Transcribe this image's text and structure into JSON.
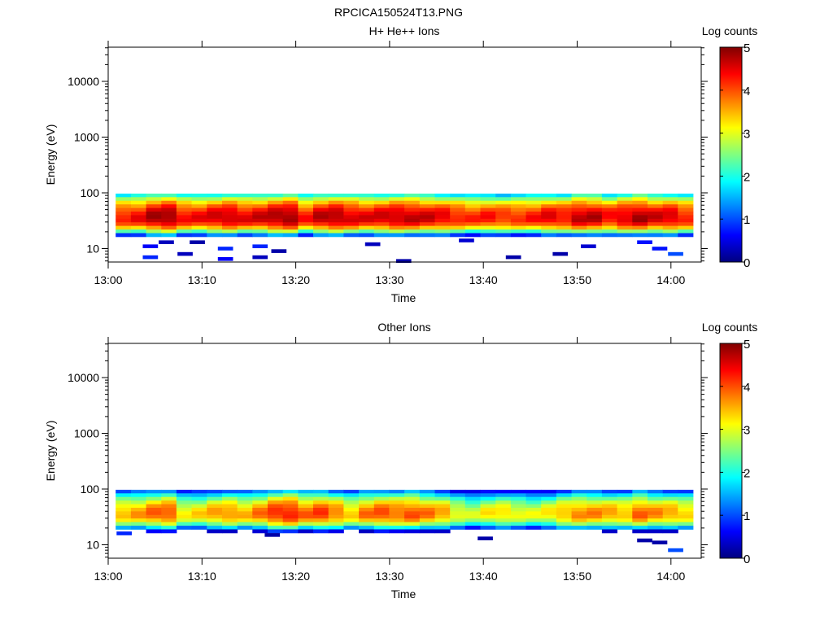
{
  "chart_data": {
    "type": "heatmap",
    "title": "RPCICA150524T13.PNG",
    "time_axis": {
      "label": "Time",
      "ticks": [
        "13:00",
        "13:10",
        "13:20",
        "13:30",
        "13:40",
        "13:50",
        "14:00"
      ],
      "range_minutes_after_1300": [
        0,
        63.2
      ]
    },
    "energy_axis": {
      "label": "Energy (eV)",
      "scale": "log",
      "ticks": [
        "10",
        "100",
        "1000",
        "10000"
      ],
      "range": [
        5.6,
        41000
      ]
    },
    "colorbar": {
      "label": "Log counts",
      "ticks": [
        "0",
        "1",
        "2",
        "3",
        "4",
        "5"
      ],
      "range": [
        0,
        5
      ],
      "colormap": [
        "#000080",
        "#0000ff",
        "#00ffff",
        "#ffff00",
        "#ff0000",
        "#800000"
      ]
    },
    "column_start_minute": 0.8,
    "column_minutes": 1.62,
    "energy_bin_top_eV": 97,
    "energy_bin_ratio": 1.16,
    "energy_bin_count": 13,
    "panels": [
      {
        "title": "H+ He++ Ions",
        "peak_energy_eV": 35,
        "column_peak_log_counts": [
          4.3,
          4.4,
          4.8,
          4.9,
          4.4,
          4.4,
          4.6,
          4.7,
          4.5,
          4.6,
          4.8,
          4.9,
          4.3,
          4.7,
          4.8,
          4.6,
          4.5,
          4.6,
          4.7,
          4.7,
          4.6,
          4.5,
          4.3,
          4.2,
          4.3,
          4.2,
          4.2,
          4.3,
          4.5,
          4.4,
          4.7,
          4.7,
          4.4,
          4.6,
          4.8,
          4.6,
          4.6,
          4.3
        ],
        "sparse_counts": [
          [
            4.5,
            11,
            0.6
          ],
          [
            4.5,
            7,
            0.8
          ],
          [
            6.2,
            13,
            0.3
          ],
          [
            8.2,
            8,
            0.3
          ],
          [
            9.5,
            13,
            0.2
          ],
          [
            12.5,
            10,
            0.8
          ],
          [
            12.5,
            6.5,
            0.6
          ],
          [
            16.2,
            11,
            0.8
          ],
          [
            16.2,
            7,
            0.3
          ],
          [
            18.2,
            9,
            0.2
          ],
          [
            28.2,
            12,
            0.3
          ],
          [
            31.5,
            6,
            0.2
          ],
          [
            38.2,
            14,
            0.4
          ],
          [
            43.2,
            7,
            0.2
          ],
          [
            48.2,
            8,
            0.2
          ],
          [
            51.2,
            11,
            0.4
          ],
          [
            57.2,
            13,
            0.7
          ],
          [
            58.8,
            10,
            0.7
          ],
          [
            60.5,
            8,
            1.0
          ]
        ]
      },
      {
        "title": "Other Ions",
        "peak_energy_eV": 35,
        "column_peak_log_counts": [
          3.5,
          3.6,
          3.9,
          4.0,
          3.2,
          3.3,
          3.6,
          3.7,
          3.5,
          3.8,
          4.2,
          4.3,
          3.9,
          4.1,
          3.8,
          3.4,
          3.8,
          4.0,
          3.9,
          4.0,
          3.8,
          3.6,
          3.1,
          2.9,
          3.2,
          3.3,
          3.1,
          3.0,
          3.2,
          3.5,
          3.7,
          3.7,
          3.6,
          3.5,
          3.9,
          3.7,
          3.6,
          3.4
        ],
        "sparse_counts": [
          [
            1.7,
            16,
            0.8
          ],
          [
            17.5,
            15,
            0.2
          ],
          [
            40.2,
            13,
            0.2
          ],
          [
            57.2,
            12,
            0.2
          ],
          [
            58.8,
            11,
            0.2
          ],
          [
            60.5,
            8,
            1.0
          ]
        ]
      }
    ]
  }
}
